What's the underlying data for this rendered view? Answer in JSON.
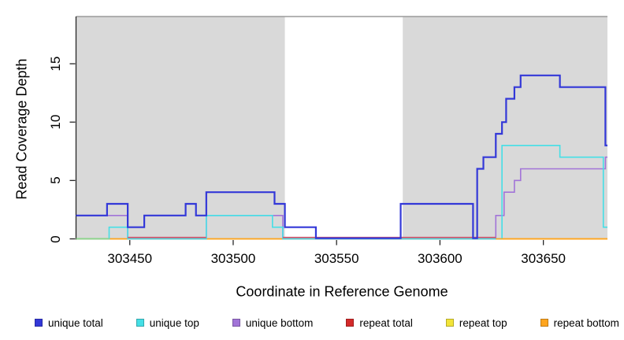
{
  "chart_data": {
    "type": "line",
    "subtype": "step-coverage-plot",
    "title": "",
    "xlabel": "Coordinate in Reference Genome",
    "ylabel": "Read Coverage Depth",
    "xlim": [
      303424,
      303681
    ],
    "ylim": [
      0,
      19
    ],
    "grid": false,
    "legend_position": "bottom",
    "x_ticks": [
      {
        "value": 303450,
        "label": "303450"
      },
      {
        "value": 303500,
        "label": "303500"
      },
      {
        "value": 303550,
        "label": "303550"
      },
      {
        "value": 303600,
        "label": "303600"
      },
      {
        "value": 303650,
        "label": "303650"
      }
    ],
    "y_ticks": [
      {
        "value": 0,
        "label": "0"
      },
      {
        "value": 5,
        "label": "5"
      },
      {
        "value": 10,
        "label": "10"
      },
      {
        "value": 15,
        "label": "15"
      }
    ],
    "shaded_regions": [
      {
        "x0": 303424,
        "x1": 303525,
        "color": "#d9d9d9"
      },
      {
        "x0": 303582,
        "x1": 303681,
        "color": "#d9d9d9"
      }
    ],
    "series": [
      {
        "name": "unique total",
        "color": "#3338d8",
        "width": 2.2,
        "steps": [
          [
            303424,
            2
          ],
          [
            303439,
            3
          ],
          [
            303449,
            1
          ],
          [
            303457,
            2
          ],
          [
            303477,
            3
          ],
          [
            303482,
            2
          ],
          [
            303487,
            4
          ],
          [
            303520,
            3
          ],
          [
            303525,
            1
          ],
          [
            303540,
            0
          ],
          [
            303581,
            3
          ],
          [
            303616,
            0
          ],
          [
            303618,
            6
          ],
          [
            303621,
            7
          ],
          [
            303627,
            9
          ],
          [
            303630,
            10
          ],
          [
            303632,
            12
          ],
          [
            303636,
            13
          ],
          [
            303639,
            14
          ],
          [
            303658,
            13
          ],
          [
            303680,
            8
          ]
        ]
      },
      {
        "name": "unique top",
        "color": "#45dfe6",
        "width": 1.6,
        "steps": [
          [
            303424,
            0
          ],
          [
            303440,
            1
          ],
          [
            303449,
            0
          ],
          [
            303487,
            2
          ],
          [
            303519,
            1
          ],
          [
            303524,
            0
          ],
          [
            303630,
            8
          ],
          [
            303658,
            7
          ],
          [
            303679,
            1
          ]
        ]
      },
      {
        "name": "unique bottom",
        "color": "#a274d8",
        "width": 1.6,
        "steps": [
          [
            303424,
            2
          ],
          [
            303449,
            0
          ],
          [
            303487,
            2
          ],
          [
            303524,
            0
          ],
          [
            303627,
            2
          ],
          [
            303631,
            4
          ],
          [
            303636,
            5
          ],
          [
            303639,
            6
          ],
          [
            303680,
            7
          ]
        ]
      },
      {
        "name": "repeat total",
        "color": "#d42a2a",
        "width": 1.6,
        "steps": [
          [
            303424,
            0
          ]
        ]
      },
      {
        "name": "repeat top",
        "color": "#f2e438",
        "width": 1.6,
        "steps": [
          [
            303424,
            0
          ]
        ]
      },
      {
        "name": "repeat bottom",
        "color": "#ffa51e",
        "width": 1.6,
        "steps": [
          [
            303424,
            0
          ]
        ]
      }
    ],
    "baseline_overlays": [
      {
        "color": "#8ed48e",
        "x0": 303424,
        "x1": 303440
      },
      {
        "color": "#d0566e",
        "x0": 303449,
        "x1": 303487
      },
      {
        "color": "#d0566e",
        "x0": 303524,
        "x1": 303627
      },
      {
        "color": "#ffa51e",
        "x0": 303627,
        "x1": 303681
      }
    ]
  }
}
